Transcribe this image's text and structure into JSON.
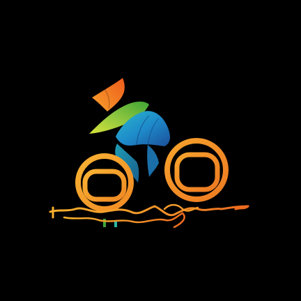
{
  "background": "#000000",
  "logo": {
    "name": "cyclist-logo",
    "colors": {
      "orange_light": "#F8B12E",
      "orange_mid": "#F59A2A",
      "orange_deep": "#EE6A1E",
      "green_light": "#B7DC2E",
      "green_deep": "#3FA535",
      "blue_light": "#2AA6D9",
      "blue_deep": "#1B5FA3",
      "teal": "#2BB7A2"
    }
  }
}
